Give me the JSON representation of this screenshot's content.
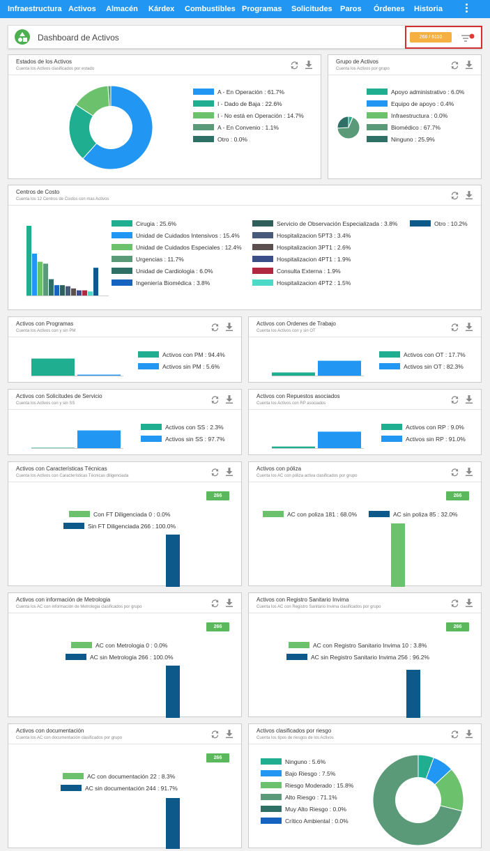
{
  "nav": {
    "items": [
      {
        "label": "Infraestructura"
      },
      {
        "label": "Activos"
      },
      {
        "label": "Almacén"
      },
      {
        "label": "Kárdex"
      },
      {
        "label": "Combustibles"
      },
      {
        "label": "Programas"
      },
      {
        "label": "Solicitudes"
      },
      {
        "label": "Paros"
      },
      {
        "label": "Órdenes"
      },
      {
        "label": "Historia"
      }
    ],
    "more_icon": "more-vert-icon"
  },
  "header": {
    "title": "Dashboard de Activos",
    "count": "266 / 6110",
    "filter_icon": "filter-icon",
    "logo_icon": "shapes-icon"
  },
  "colors": {
    "nav": "#2196f3",
    "count_tag": "#5cb85c",
    "badge": "#f5b041",
    "highlight": "#d32f2f"
  },
  "cards": {
    "estados": {
      "title": "Estados de los Activos",
      "subtitle": "Cuenta los Activos clasificados por estado"
    },
    "grupo": {
      "title": "Grupo de Activos",
      "subtitle": "Cuenta los Activos por grupo"
    },
    "centros": {
      "title": "Centros de Costo",
      "subtitle": "Cuenta los 12 Centros de Costos con mas Activos"
    },
    "programas": {
      "title": "Activos con Programas",
      "subtitle": "Cuenta los Activos con y sin PM"
    },
    "ordenes": {
      "title": "Activos con Ordenes de Trabajo",
      "subtitle": "Cuenta los Activos con y sin OT"
    },
    "solicitudes": {
      "title": "Activos con Solicitudes de Servicio",
      "subtitle": "Cuenta los Activos con y sin SS"
    },
    "repuestos": {
      "title": "Activos con Repuestos asociados",
      "subtitle": "Cuenta los Activos con RP asociados"
    },
    "caracteristicas": {
      "title": "Activos con Características Técnicas",
      "subtitle": "Cuenta los Activos con Características Técnicas diligenciada",
      "tag": "266"
    },
    "poliza": {
      "title": "Activos con póliza",
      "subtitle": "Cuenta los AC con póliza activa clasificados por grupo",
      "tag": "266"
    },
    "metrologia": {
      "title": "Activos con información de Metrologia",
      "subtitle": "Cuenta los AC con información de Metrologia clasificados por grupo",
      "tag": "266"
    },
    "invima": {
      "title": "Activos con Registro Sanitario Invima",
      "subtitle": "Cuenta los AC con Registro Sanitario Invima clasificados por grupo",
      "tag": "266"
    },
    "documentacion": {
      "title": "Activos con documentación",
      "subtitle": "Cuenta los AC con documentación clasificados por grupo",
      "tag": "266"
    },
    "riesgo": {
      "title": "Activos clasificados por riesgo",
      "subtitle": "Cuenta los tipos de riesgos de los Activos"
    }
  },
  "chart_data": [
    {
      "id": "estados",
      "type": "pie",
      "donut": true,
      "slices": [
        {
          "label": "A - En Operación : 61.7%",
          "value": 61.7,
          "color": "#2196f3"
        },
        {
          "label": "I - Dado de Baja : 22.6%",
          "value": 22.6,
          "color": "#1fae8f"
        },
        {
          "label": "I - No está en Operación : 14.7%",
          "value": 14.7,
          "color": "#6cc26c"
        },
        {
          "label": "A - En Convenio : 1.1%",
          "value": 1.1,
          "color": "#5a9a78"
        },
        {
          "label": "Otro : 0.0%",
          "value": 0.0,
          "color": "#2e6f66"
        }
      ]
    },
    {
      "id": "grupo",
      "type": "pie",
      "donut": false,
      "slices": [
        {
          "label": "Apoyo administrativo : 6.0%",
          "value": 6.0,
          "color": "#1fae8f"
        },
        {
          "label": "Equipo de apoyo : 0.4%",
          "value": 0.4,
          "color": "#2196f3"
        },
        {
          "label": "Infraestructura : 0.0%",
          "value": 0.0,
          "color": "#6cc26c"
        },
        {
          "label": "Biomédico : 67.7%",
          "value": 67.7,
          "color": "#5a9a78"
        },
        {
          "label": "Ninguno : 25.9%",
          "value": 25.9,
          "color": "#2e6f66"
        }
      ]
    },
    {
      "id": "centros",
      "type": "bar",
      "series": [
        {
          "name": "Cirugia : 25.6%",
          "value": 25.6,
          "color": "#1fae8f"
        },
        {
          "name": "Unidad de Cuidados Intensivos : 15.4%",
          "value": 15.4,
          "color": "#2196f3"
        },
        {
          "name": "Unidad de Cuidados Especiales : 12.4%",
          "value": 12.4,
          "color": "#6cc26c"
        },
        {
          "name": "Urgencias : 11.7%",
          "value": 11.7,
          "color": "#5a9a78"
        },
        {
          "name": "Unidad de Cardiologia : 6.0%",
          "value": 6.0,
          "color": "#2e6f66"
        },
        {
          "name": "Ingeniería Biomédica : 3.8%",
          "value": 3.8,
          "color": "#1565c0"
        },
        {
          "name": "Servicio de Observación Especializada : 3.8%",
          "value": 3.8,
          "color": "#2f5f5a"
        },
        {
          "name": "Hospitalizacion 5PT3 : 3.4%",
          "value": 3.4,
          "color": "#475a7a"
        },
        {
          "name": "Hospitalizacion 3PT1 : 2.6%",
          "value": 2.6,
          "color": "#5b4f4f"
        },
        {
          "name": "Hospitalizacion 4PT1 : 1.9%",
          "value": 1.9,
          "color": "#3a4f8a"
        },
        {
          "name": "Consulta Externa : 1.9%",
          "value": 1.9,
          "color": "#b0283f"
        },
        {
          "name": "Hospitalizacion 4PT2 : 1.5%",
          "value": 1.5,
          "color": "#4dd9c8"
        },
        {
          "name": "Otro : 10.2%",
          "value": 10.2,
          "color": "#0d5a8a"
        }
      ]
    },
    {
      "id": "programas",
      "type": "bar",
      "series": [
        {
          "name": "Activos con PM : 94.4%",
          "value": 94.4,
          "color": "#1fae8f"
        },
        {
          "name": "Activos sin PM : 5.6%",
          "value": 5.6,
          "color": "#2196f3"
        }
      ]
    },
    {
      "id": "ordenes",
      "type": "bar",
      "series": [
        {
          "name": "Activos con OT : 17.7%",
          "value": 17.7,
          "color": "#1fae8f"
        },
        {
          "name": "Activos sin OT : 82.3%",
          "value": 82.3,
          "color": "#2196f3"
        }
      ]
    },
    {
      "id": "solicitudes",
      "type": "bar",
      "series": [
        {
          "name": "Activos con SS : 2.3%",
          "value": 2.3,
          "color": "#1fae8f"
        },
        {
          "name": "Activos sin SS : 97.7%",
          "value": 97.7,
          "color": "#2196f3"
        }
      ]
    },
    {
      "id": "repuestos",
      "type": "bar",
      "series": [
        {
          "name": "Activos con RP : 9.0%",
          "value": 9.0,
          "color": "#1fae8f"
        },
        {
          "name": "Activos sin RP : 91.0%",
          "value": 91.0,
          "color": "#2196f3"
        }
      ]
    },
    {
      "id": "caracteristicas",
      "type": "bar",
      "series": [
        {
          "name": "Con FT Diligenciada 0  : 0.0%",
          "value": 0.0,
          "color": "#6cc26c"
        },
        {
          "name": "Sin FT Diligenciada 266  : 100.0%",
          "value": 100.0,
          "color": "#0d5a8a"
        }
      ]
    },
    {
      "id": "poliza",
      "type": "bar",
      "series": [
        {
          "name": "AC con poliza 181  : 68.0%",
          "value": 68.0,
          "color": "#6cc26c"
        },
        {
          "name": "AC sin poliza 85  : 32.0%",
          "value": 32.0,
          "color": "#0d5a8a"
        }
      ]
    },
    {
      "id": "metrologia",
      "type": "bar",
      "series": [
        {
          "name": "AC con Metrologia 0  : 0.0%",
          "value": 0.0,
          "color": "#6cc26c"
        },
        {
          "name": "AC sin Metrologia 266  : 100.0%",
          "value": 100.0,
          "color": "#0d5a8a"
        }
      ]
    },
    {
      "id": "invima",
      "type": "bar",
      "series": [
        {
          "name": "AC con Registro Sanitario Invima 10  : 3.8%",
          "value": 3.8,
          "color": "#6cc26c"
        },
        {
          "name": "AC sin Registro Sanitario Invima 256  : 96.2%",
          "value": 96.2,
          "color": "#0d5a8a"
        }
      ]
    },
    {
      "id": "documentacion",
      "type": "bar",
      "series": [
        {
          "name": "AC con documentación 22  : 8.3%",
          "value": 8.3,
          "color": "#6cc26c"
        },
        {
          "name": "AC sin documentación 244  : 91.7%",
          "value": 91.7,
          "color": "#0d5a8a"
        }
      ]
    },
    {
      "id": "riesgo",
      "type": "pie",
      "donut": true,
      "slices": [
        {
          "label": "Ninguno : 5.6%",
          "value": 5.6,
          "color": "#1fae8f"
        },
        {
          "label": "Bajo Riesgo : 7.5%",
          "value": 7.5,
          "color": "#2196f3"
        },
        {
          "label": "Riesgo Moderado : 15.8%",
          "value": 15.8,
          "color": "#6cc26c"
        },
        {
          "label": "Alto Riesgo : 71.1%",
          "value": 71.1,
          "color": "#5a9a78"
        },
        {
          "label": "Muy Alto Riesgo : 0.0%",
          "value": 0.0,
          "color": "#2e6f66"
        },
        {
          "label": "Crítico Ambiental : 0.0%",
          "value": 0.0,
          "color": "#1565c0"
        }
      ]
    }
  ]
}
